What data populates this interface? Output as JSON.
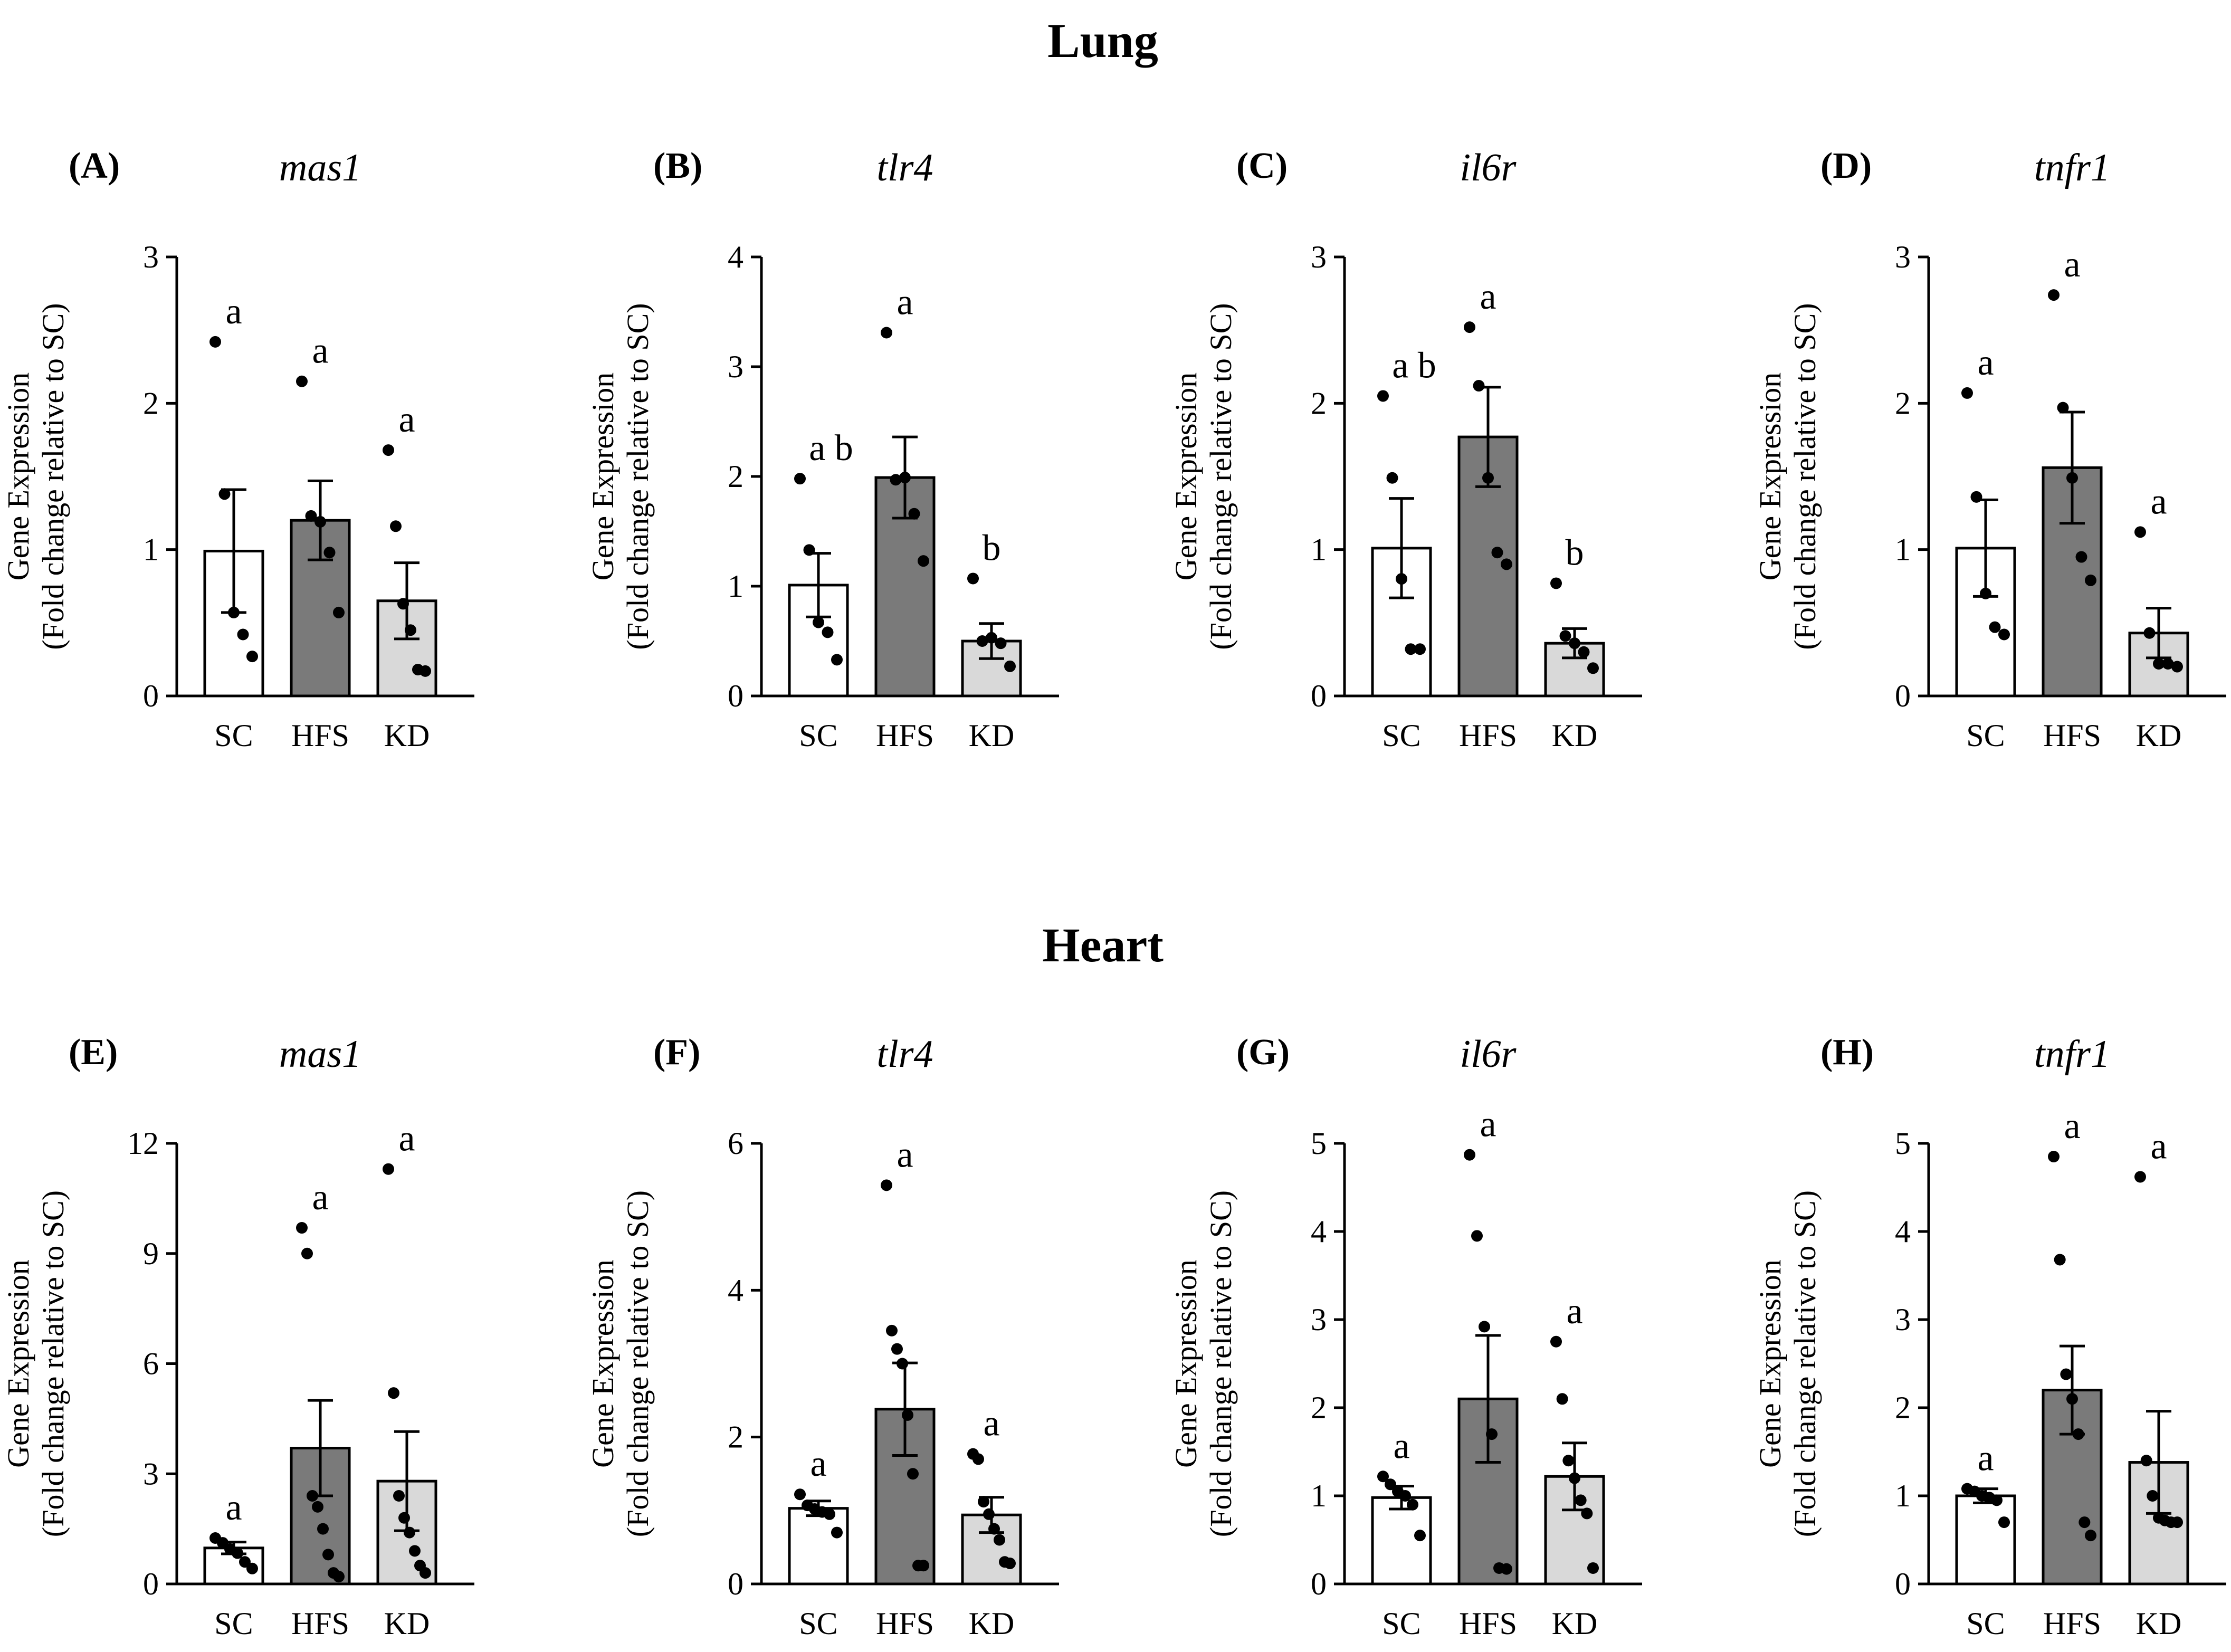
{
  "sections": [
    {
      "name": "lung",
      "title": "Lung"
    },
    {
      "name": "heart",
      "title": "Heart"
    }
  ],
  "colors": {
    "SC": "#ffffff",
    "HFS": "#7a7a7a",
    "KD": "#d9d9d9",
    "ink": "#000000"
  },
  "chart_data": [
    {
      "type": "bar",
      "panel": "(A)",
      "title": "mas1",
      "section": "Lung",
      "categories": [
        "SC",
        "HFS",
        "KD"
      ],
      "values": [
        0.99,
        1.2,
        0.65
      ],
      "sem": [
        0.42,
        0.27,
        0.26
      ],
      "points": [
        [
          2.42,
          1.38,
          0.57,
          0.42,
          0.27
        ],
        [
          2.15,
          1.23,
          1.19,
          0.98,
          0.57
        ],
        [
          1.68,
          1.16,
          0.63,
          0.45,
          0.18,
          0.17
        ]
      ],
      "letters": [
        "a",
        "a",
        "a"
      ],
      "ylabel": "Gene Expression",
      "ylabel2": "(Fold change relative to SC)",
      "ylim": [
        0,
        3
      ],
      "yticks": [
        0,
        1,
        2,
        3
      ]
    },
    {
      "type": "bar",
      "panel": "(B)",
      "title": "tlr4",
      "section": "Lung",
      "categories": [
        "SC",
        "HFS",
        "KD"
      ],
      "values": [
        1.01,
        1.99,
        0.5
      ],
      "sem": [
        0.29,
        0.37,
        0.16
      ],
      "points": [
        [
          1.98,
          1.33,
          0.67,
          0.58,
          0.33
        ],
        [
          3.31,
          1.97,
          1.99,
          1.66,
          1.23
        ],
        [
          1.07,
          0.5,
          0.53,
          0.48,
          0.27
        ]
      ],
      "letters": [
        "a b",
        "a",
        "b"
      ],
      "ylabel": "Gene Expression",
      "ylabel2": "(Fold change relative to SC)",
      "ylim": [
        0,
        4
      ],
      "yticks": [
        0,
        1,
        2,
        3,
        4
      ]
    },
    {
      "type": "bar",
      "panel": "(C)",
      "title": "il6r",
      "section": "Lung",
      "categories": [
        "SC",
        "HFS",
        "KD"
      ],
      "values": [
        1.01,
        1.77,
        0.36
      ],
      "sem": [
        0.34,
        0.34,
        0.1
      ],
      "points": [
        [
          2.05,
          1.49,
          0.8,
          0.32,
          0.32
        ],
        [
          2.52,
          2.12,
          1.49,
          0.98,
          0.9
        ],
        [
          0.77,
          0.41,
          0.36,
          0.3,
          0.19
        ]
      ],
      "letters": [
        "a b",
        "a",
        "b"
      ],
      "ylabel": "Gene Expression",
      "ylabel2": "(Fold change relative to SC)",
      "ylim": [
        0,
        3
      ],
      "yticks": [
        0,
        1,
        2,
        3
      ]
    },
    {
      "type": "bar",
      "panel": "(D)",
      "title": "tnfr1",
      "section": "Lung",
      "categories": [
        "SC",
        "HFS",
        "KD"
      ],
      "values": [
        1.01,
        1.56,
        0.43
      ],
      "sem": [
        0.33,
        0.38,
        0.17
      ],
      "points": [
        [
          2.07,
          1.36,
          0.7,
          0.47,
          0.42
        ],
        [
          2.74,
          1.97,
          1.49,
          0.95,
          0.79
        ],
        [
          1.12,
          0.43,
          0.22,
          0.22,
          0.2
        ]
      ],
      "letters": [
        "a",
        "a",
        "a"
      ],
      "ylabel": "Gene Expression",
      "ylabel2": "(Fold change relative to SC)",
      "ylim": [
        0,
        3
      ],
      "yticks": [
        0,
        1,
        2,
        3
      ]
    },
    {
      "type": "bar",
      "panel": "(E)",
      "title": "mas1",
      "section": "Heart",
      "categories": [
        "SC",
        "HFS",
        "KD"
      ],
      "values": [
        0.98,
        3.7,
        2.8
      ],
      "sem": [
        0.16,
        1.3,
        1.35
      ],
      "points": [
        [
          1.25,
          1.12,
          0.95,
          0.84,
          0.6,
          0.42
        ],
        [
          9.7,
          9.0,
          2.4,
          2.1,
          1.5,
          0.8,
          0.3,
          0.2
        ],
        [
          11.3,
          5.2,
          2.4,
          1.8,
          1.4,
          0.9,
          0.5,
          0.3
        ]
      ],
      "letters": [
        "a",
        "a",
        "a"
      ],
      "ylabel": "Gene Expression",
      "ylabel2": "(Fold change relative to SC)",
      "ylim": [
        0,
        12
      ],
      "yticks": [
        0,
        3,
        6,
        9,
        12
      ]
    },
    {
      "type": "bar",
      "panel": "(F)",
      "title": "tlr4",
      "section": "Heart",
      "categories": [
        "SC",
        "HFS",
        "KD"
      ],
      "values": [
        1.03,
        2.38,
        0.94
      ],
      "sem": [
        0.1,
        0.63,
        0.24
      ],
      "points": [
        [
          1.22,
          1.07,
          1.02,
          0.98,
          0.95,
          0.7
        ],
        [
          5.43,
          3.45,
          3.2,
          3.0,
          2.3,
          1.5,
          0.25,
          0.25
        ],
        [
          1.77,
          1.7,
          1.12,
          0.95,
          0.75,
          0.6,
          0.3,
          0.28
        ]
      ],
      "letters": [
        "a",
        "a",
        "a"
      ],
      "ylabel": "Gene Expression",
      "ylabel2": "(Fold change relative to SC)",
      "ylim": [
        0,
        6
      ],
      "yticks": [
        0,
        2,
        4,
        6
      ]
    },
    {
      "type": "bar",
      "panel": "(G)",
      "title": "il6r",
      "section": "Heart",
      "categories": [
        "SC",
        "HFS",
        "KD"
      ],
      "values": [
        0.98,
        2.1,
        1.22
      ],
      "sem": [
        0.13,
        0.72,
        0.38
      ],
      "points": [
        [
          1.22,
          1.13,
          1.05,
          1.0,
          0.9,
          0.55
        ],
        [
          4.87,
          3.95,
          2.92,
          1.7,
          0.18,
          0.17
        ],
        [
          2.75,
          2.1,
          1.4,
          1.2,
          0.95,
          0.8,
          0.18
        ]
      ],
      "letters": [
        "a",
        "a",
        "a"
      ],
      "ylabel": "Gene Expression",
      "ylabel2": "(Fold change relative to SC)",
      "ylim": [
        0,
        5
      ],
      "yticks": [
        0,
        1,
        2,
        3,
        4,
        5
      ]
    },
    {
      "type": "bar",
      "panel": "(H)",
      "title": "tnfr1",
      "section": "Heart",
      "categories": [
        "SC",
        "HFS",
        "KD"
      ],
      "values": [
        1.0,
        2.2,
        1.38
      ],
      "sem": [
        0.08,
        0.5,
        0.58
      ],
      "points": [
        [
          1.08,
          1.05,
          1.0,
          0.98,
          0.95,
          0.7
        ],
        [
          4.85,
          3.68,
          2.38,
          2.1,
          1.7,
          0.7,
          0.55
        ],
        [
          4.62,
          1.4,
          1.0,
          0.75,
          0.72,
          0.7,
          0.7
        ]
      ],
      "letters": [
        "a",
        "a",
        "a"
      ],
      "ylabel": "Gene Expression",
      "ylabel2": "(Fold change relative to SC)",
      "ylim": [
        0,
        5
      ],
      "yticks": [
        0,
        1,
        2,
        3,
        4,
        5
      ]
    }
  ]
}
